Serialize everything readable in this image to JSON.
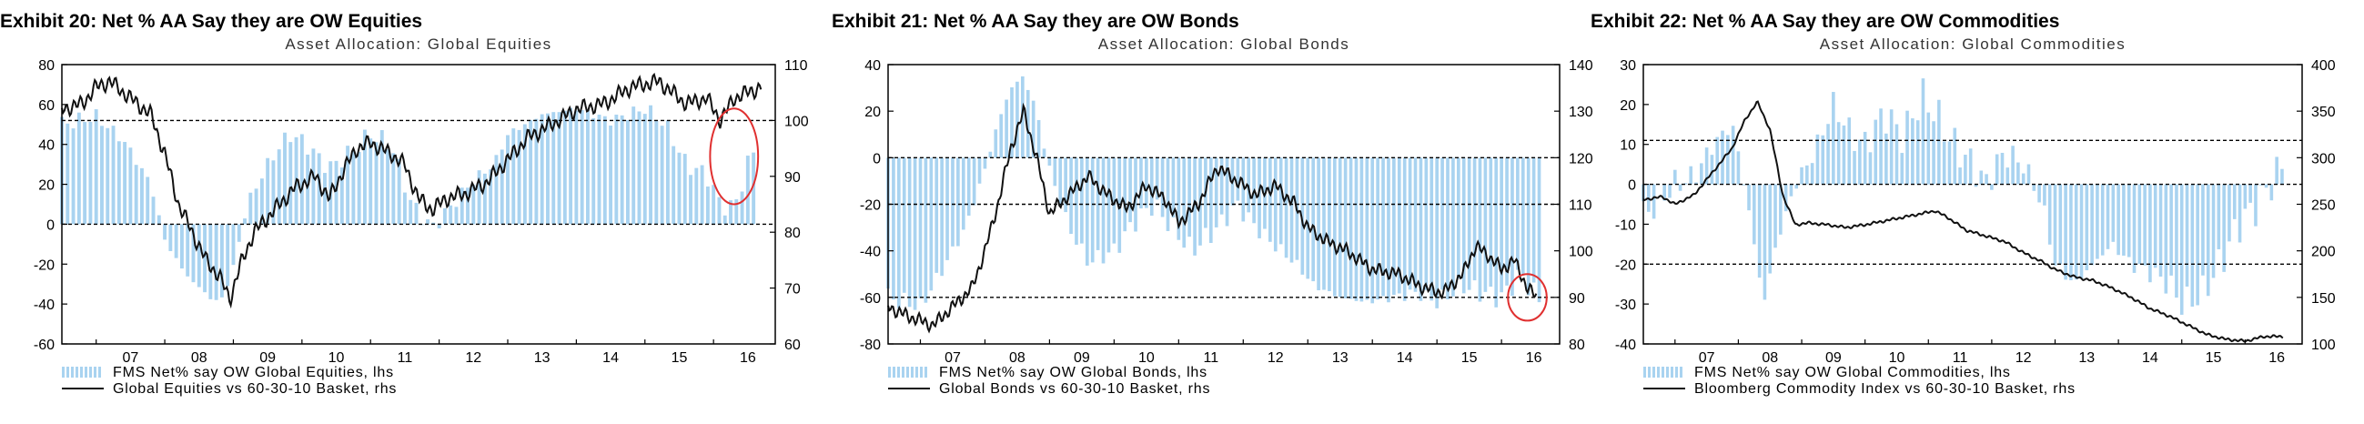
{
  "panels": [
    {
      "exhibit": "Exhibit 20: Net % AA Say they are OW Equities"
    },
    {
      "exhibit": "Exhibit 21: Net % AA Say they are OW Bonds"
    },
    {
      "exhibit": "Exhibit 22: Net % AA Say they are OW Commodities"
    }
  ],
  "colors": {
    "bar": "#a9d3f0",
    "line": "#111111",
    "highlight": "#e03030",
    "grid": "#000000"
  },
  "chart_data": [
    {
      "type": "bar+line",
      "title": "Asset Allocation: Global Equities",
      "x_ticks": [
        "07",
        "08",
        "09",
        "10",
        "11",
        "12",
        "13",
        "14",
        "15",
        "16"
      ],
      "x_range": [
        2006.5,
        2016.9
      ],
      "ylim_left": [
        -60,
        80
      ],
      "yticks_left": [
        -60,
        -40,
        -20,
        0,
        20,
        40,
        60,
        80
      ],
      "ylim_right": [
        60,
        110
      ],
      "yticks_right": [
        60,
        70,
        80,
        90,
        100,
        110
      ],
      "ref_lines_left": [
        0,
        52
      ],
      "series": [
        {
          "name": "FMS Net% say OW Global Equities, lhs",
          "kind": "bar",
          "axis": "left",
          "start": 2006.5,
          "end": 2016.6,
          "knots": [
            [
              2006.5,
              50
            ],
            [
              2007.0,
              54
            ],
            [
              2007.4,
              42
            ],
            [
              2007.8,
              20
            ],
            [
              2008.0,
              -8
            ],
            [
              2008.3,
              -25
            ],
            [
              2008.6,
              -35
            ],
            [
              2008.8,
              -40
            ],
            [
              2009.0,
              -22
            ],
            [
              2009.2,
              10
            ],
            [
              2009.5,
              30
            ],
            [
              2009.8,
              45
            ],
            [
              2010.0,
              42
            ],
            [
              2010.4,
              28
            ],
            [
              2010.7,
              36
            ],
            [
              2011.0,
              45
            ],
            [
              2011.3,
              40
            ],
            [
              2011.6,
              10
            ],
            [
              2011.9,
              -2
            ],
            [
              2012.2,
              10
            ],
            [
              2012.5,
              22
            ],
            [
              2012.8,
              30
            ],
            [
              2013.0,
              45
            ],
            [
              2013.5,
              55
            ],
            [
              2014.0,
              58
            ],
            [
              2014.5,
              52
            ],
            [
              2015.0,
              58
            ],
            [
              2015.3,
              50
            ],
            [
              2015.6,
              30
            ],
            [
              2015.9,
              25
            ],
            [
              2016.1,
              10
            ],
            [
              2016.3,
              8
            ],
            [
              2016.5,
              30
            ],
            [
              2016.6,
              38
            ]
          ]
        },
        {
          "name": "Global Equities vs 60-30-10 Basket, rhs",
          "kind": "line",
          "axis": "right",
          "start": 2006.5,
          "end": 2016.7,
          "knots": [
            [
              2006.5,
              102
            ],
            [
              2006.8,
              103
            ],
            [
              2007.0,
              106
            ],
            [
              2007.2,
              107
            ],
            [
              2007.5,
              104
            ],
            [
              2007.8,
              101
            ],
            [
              2008.0,
              94
            ],
            [
              2008.2,
              85
            ],
            [
              2008.4,
              80
            ],
            [
              2008.6,
              75
            ],
            [
              2008.8,
              72
            ],
            [
              2008.95,
              68
            ],
            [
              2009.1,
              74
            ],
            [
              2009.3,
              80
            ],
            [
              2009.6,
              84
            ],
            [
              2009.9,
              88
            ],
            [
              2010.2,
              90
            ],
            [
              2010.4,
              86
            ],
            [
              2010.6,
              91
            ],
            [
              2010.8,
              95
            ],
            [
              2011.0,
              96
            ],
            [
              2011.3,
              94
            ],
            [
              2011.5,
              92
            ],
            [
              2011.7,
              86
            ],
            [
              2011.9,
              84
            ],
            [
              2012.1,
              86
            ],
            [
              2012.4,
              87
            ],
            [
              2012.7,
              89
            ],
            [
              2013.0,
              93
            ],
            [
              2013.3,
              97
            ],
            [
              2013.6,
              99
            ],
            [
              2014.0,
              102
            ],
            [
              2014.4,
              103
            ],
            [
              2014.8,
              106
            ],
            [
              2015.2,
              107
            ],
            [
              2015.4,
              105
            ],
            [
              2015.6,
              103
            ],
            [
              2015.9,
              104
            ],
            [
              2016.1,
              100
            ],
            [
              2016.3,
              104
            ],
            [
              2016.5,
              105
            ],
            [
              2016.7,
              106
            ]
          ]
        }
      ],
      "highlight_ellipse": {
        "x": 2016.3,
        "y": 34,
        "rx": 0.35,
        "ry": 24
      }
    },
    {
      "type": "bar+line",
      "title": "Asset Allocation: Global Bonds",
      "x_ticks": [
        "07",
        "08",
        "09",
        "10",
        "11",
        "12",
        "13",
        "14",
        "15",
        "16"
      ],
      "x_range": [
        2006.5,
        2016.9
      ],
      "ylim_left": [
        -80,
        40
      ],
      "yticks_left": [
        -80,
        -60,
        -40,
        -20,
        0,
        20,
        40
      ],
      "ylim_right": [
        80,
        140
      ],
      "yticks_right": [
        80,
        90,
        100,
        110,
        120,
        130,
        140
      ],
      "ref_lines_left": [
        0,
        -20,
        -60
      ],
      "series": [
        {
          "name": "FMS Net% say OW Global Bonds, lhs",
          "kind": "bar",
          "axis": "left",
          "start": 2006.5,
          "end": 2016.6,
          "knots": [
            [
              2006.5,
              -60
            ],
            [
              2007.0,
              -64
            ],
            [
              2007.3,
              -50
            ],
            [
              2007.7,
              -30
            ],
            [
              2008.0,
              -5
            ],
            [
              2008.2,
              15
            ],
            [
              2008.4,
              30
            ],
            [
              2008.6,
              35
            ],
            [
              2008.8,
              20
            ],
            [
              2009.0,
              -5
            ],
            [
              2009.3,
              -30
            ],
            [
              2009.6,
              -45
            ],
            [
              2010.0,
              -40
            ],
            [
              2010.3,
              -28
            ],
            [
              2010.6,
              -20
            ],
            [
              2010.9,
              -30
            ],
            [
              2011.2,
              -40
            ],
            [
              2011.6,
              -30
            ],
            [
              2011.9,
              -20
            ],
            [
              2012.2,
              -30
            ],
            [
              2012.5,
              -38
            ],
            [
              2012.8,
              -45
            ],
            [
              2013.1,
              -55
            ],
            [
              2013.5,
              -60
            ],
            [
              2013.9,
              -62
            ],
            [
              2014.3,
              -60
            ],
            [
              2014.7,
              -58
            ],
            [
              2015.0,
              -62
            ],
            [
              2015.4,
              -55
            ],
            [
              2015.7,
              -58
            ],
            [
              2016.0,
              -60
            ],
            [
              2016.3,
              -50
            ],
            [
              2016.6,
              -62
            ]
          ]
        },
        {
          "name": "Global Bonds vs 60-30-10 Basket, rhs",
          "kind": "line",
          "axis": "right",
          "start": 2006.5,
          "end": 2016.55,
          "knots": [
            [
              2006.5,
              88
            ],
            [
              2006.8,
              86
            ],
            [
              2007.2,
              84
            ],
            [
              2007.5,
              88
            ],
            [
              2007.8,
              92
            ],
            [
              2008.0,
              100
            ],
            [
              2008.2,
              110
            ],
            [
              2008.4,
              122
            ],
            [
              2008.6,
              130
            ],
            [
              2008.8,
              120
            ],
            [
              2009.0,
              108
            ],
            [
              2009.3,
              112
            ],
            [
              2009.6,
              116
            ],
            [
              2009.9,
              112
            ],
            [
              2010.2,
              109
            ],
            [
              2010.5,
              114
            ],
            [
              2010.8,
              111
            ],
            [
              2011.0,
              106
            ],
            [
              2011.3,
              110
            ],
            [
              2011.6,
              118
            ],
            [
              2011.9,
              115
            ],
            [
              2012.2,
              112
            ],
            [
              2012.5,
              114
            ],
            [
              2012.8,
              110
            ],
            [
              2013.0,
              105
            ],
            [
              2013.3,
              102
            ],
            [
              2013.6,
              100
            ],
            [
              2014.0,
              96
            ],
            [
              2014.4,
              95
            ],
            [
              2014.8,
              92
            ],
            [
              2015.1,
              91
            ],
            [
              2015.4,
              95
            ],
            [
              2015.6,
              101
            ],
            [
              2015.8,
              99
            ],
            [
              2016.0,
              96
            ],
            [
              2016.2,
              98
            ],
            [
              2016.4,
              92
            ],
            [
              2016.55,
              90
            ]
          ]
        }
      ],
      "highlight_ellipse": {
        "x": 2016.4,
        "y": -60,
        "rx": 0.3,
        "ry": 10
      }
    },
    {
      "type": "bar+line",
      "title": "Asset Allocation: Global Commodities",
      "x_ticks": [
        "07",
        "08",
        "09",
        "10",
        "11",
        "12",
        "13",
        "14",
        "15",
        "16"
      ],
      "x_range": [
        2006.5,
        2016.9
      ],
      "ylim_left": [
        -40,
        30
      ],
      "yticks_left": [
        -40,
        -30,
        -20,
        -10,
        0,
        10,
        20,
        30
      ],
      "ylim_right": [
        100,
        400
      ],
      "yticks_right": [
        100,
        150,
        200,
        250,
        300,
        350,
        400
      ],
      "ref_lines_left": [
        0,
        11,
        -20
      ],
      "series": [
        {
          "name": "FMS Net% say OW Global Commodities, lhs",
          "kind": "bar",
          "axis": "left",
          "start": 2006.5,
          "end": 2016.6,
          "knots": [
            [
              2006.5,
              -8
            ],
            [
              2007.0,
              0
            ],
            [
              2007.3,
              2
            ],
            [
              2007.6,
              10
            ],
            [
              2007.9,
              15
            ],
            [
              2008.0,
              8
            ],
            [
              2008.2,
              -10
            ],
            [
              2008.4,
              -30
            ],
            [
              2008.6,
              -15
            ],
            [
              2008.9,
              0
            ],
            [
              2009.2,
              8
            ],
            [
              2009.5,
              20
            ],
            [
              2009.8,
              12
            ],
            [
              2010.0,
              10
            ],
            [
              2010.3,
              18
            ],
            [
              2010.6,
              12
            ],
            [
              2010.9,
              22
            ],
            [
              2011.1,
              18
            ],
            [
              2011.4,
              10
            ],
            [
              2011.7,
              5
            ],
            [
              2011.9,
              0
            ],
            [
              2012.2,
              8
            ],
            [
              2012.5,
              5
            ],
            [
              2012.8,
              -5
            ],
            [
              2013.0,
              -20
            ],
            [
              2013.3,
              -25
            ],
            [
              2013.6,
              -20
            ],
            [
              2013.9,
              -15
            ],
            [
              2014.2,
              -20
            ],
            [
              2014.5,
              -22
            ],
            [
              2014.8,
              -25
            ],
            [
              2015.0,
              -30
            ],
            [
              2015.3,
              -28
            ],
            [
              2015.6,
              -20
            ],
            [
              2015.9,
              -10
            ],
            [
              2016.2,
              -5
            ],
            [
              2016.4,
              0
            ],
            [
              2016.6,
              5
            ]
          ]
        },
        {
          "name": "Bloomberg Commodity Index vs 60-30-10 Basket, rhs",
          "kind": "line",
          "axis": "right",
          "start": 2006.5,
          "end": 2016.6,
          "knots": [
            [
              2006.5,
              255
            ],
            [
              2006.8,
              258
            ],
            [
              2007.0,
              250
            ],
            [
              2007.3,
              260
            ],
            [
              2007.6,
              285
            ],
            [
              2007.9,
              310
            ],
            [
              2008.1,
              340
            ],
            [
              2008.3,
              360
            ],
            [
              2008.5,
              330
            ],
            [
              2008.7,
              260
            ],
            [
              2008.9,
              228
            ],
            [
              2009.1,
              230
            ],
            [
              2009.4,
              228
            ],
            [
              2009.7,
              225
            ],
            [
              2010.0,
              228
            ],
            [
              2010.3,
              232
            ],
            [
              2010.6,
              236
            ],
            [
              2010.9,
              240
            ],
            [
              2011.1,
              243
            ],
            [
              2011.3,
              236
            ],
            [
              2011.6,
              222
            ],
            [
              2011.9,
              216
            ],
            [
              2012.2,
              210
            ],
            [
              2012.5,
              198
            ],
            [
              2012.8,
              188
            ],
            [
              2013.0,
              180
            ],
            [
              2013.3,
              172
            ],
            [
              2013.6,
              168
            ],
            [
              2013.9,
              160
            ],
            [
              2014.2,
              150
            ],
            [
              2014.5,
              138
            ],
            [
              2014.8,
              130
            ],
            [
              2015.1,
              120
            ],
            [
              2015.4,
              110
            ],
            [
              2015.7,
              105
            ],
            [
              2016.0,
              103
            ],
            [
              2016.3,
              108
            ],
            [
              2016.6,
              108
            ]
          ]
        }
      ]
    }
  ]
}
